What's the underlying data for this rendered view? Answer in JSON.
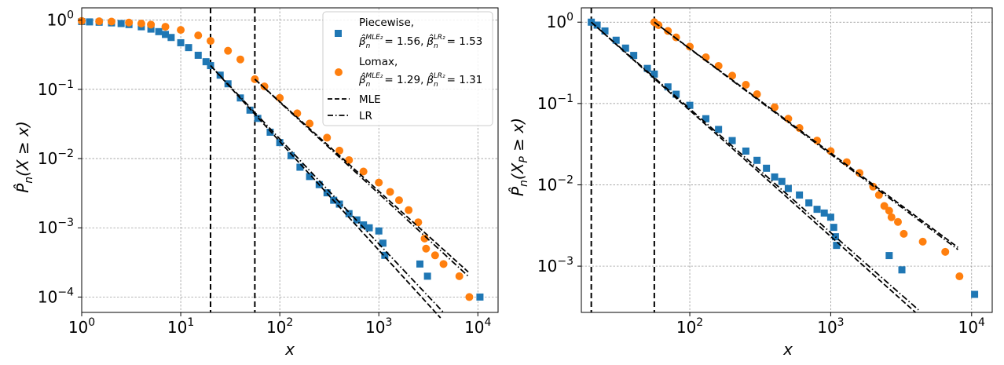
{
  "chart_data": [
    {
      "type": "scatter",
      "xscale": "log",
      "yscale": "log",
      "xlabel": "x",
      "ylabel": "P̂n(X ≥ x)",
      "xlim": [
        1,
        16000
      ],
      "ylim": [
        6e-05,
        1.5
      ],
      "x_ticks": [
        {
          "value": 1,
          "base": "10",
          "exp": "0"
        },
        {
          "value": 10,
          "base": "10",
          "exp": "1"
        },
        {
          "value": 100,
          "base": "10",
          "exp": "2"
        },
        {
          "value": 1000,
          "base": "10",
          "exp": "3"
        },
        {
          "value": 10000,
          "base": "10",
          "exp": "4"
        }
      ],
      "y_ticks": [
        {
          "value": 1,
          "base": "10",
          "exp": "0"
        },
        {
          "value": 0.1,
          "base": "10",
          "exp": "−1"
        },
        {
          "value": 0.01,
          "base": "10",
          "exp": "−2"
        },
        {
          "value": 0.001,
          "base": "10",
          "exp": "−3"
        },
        {
          "value": 0.0001,
          "base": "10",
          "exp": "−4"
        }
      ],
      "grid": true,
      "vlines": [
        20,
        56
      ],
      "series": [
        {
          "name": "Piecewise",
          "marker": "square",
          "color": "#1f77b4",
          "beta_mle": "1.56",
          "beta_lr": "1.53",
          "points": [
            [
              1,
              0.95
            ],
            [
              1.2,
              0.94
            ],
            [
              1.5,
              0.93
            ],
            [
              2,
              0.91
            ],
            [
              2.5,
              0.89
            ],
            [
              3,
              0.86
            ],
            [
              4,
              0.8
            ],
            [
              5,
              0.74
            ],
            [
              6,
              0.68
            ],
            [
              7,
              0.62
            ],
            [
              8,
              0.56
            ],
            [
              10,
              0.47
            ],
            [
              12,
              0.4
            ],
            [
              15,
              0.31
            ],
            [
              18,
              0.25
            ],
            [
              20,
              0.22
            ],
            [
              25,
              0.16
            ],
            [
              30,
              0.12
            ],
            [
              40,
              0.075
            ],
            [
              50,
              0.05
            ],
            [
              60,
              0.038
            ],
            [
              80,
              0.024
            ],
            [
              100,
              0.017
            ],
            [
              130,
              0.011
            ],
            [
              160,
              0.0075
            ],
            [
              200,
              0.0055
            ],
            [
              250,
              0.0042
            ],
            [
              300,
              0.0032
            ],
            [
              350,
              0.0025
            ],
            [
              400,
              0.0022
            ],
            [
              500,
              0.0016
            ],
            [
              600,
              0.0013
            ],
            [
              700,
              0.0011
            ],
            [
              800,
              0.001
            ],
            [
              1000,
              0.0009
            ],
            [
              1100,
              0.0006
            ],
            [
              1150,
              0.0004
            ],
            [
              2600,
              0.0003
            ],
            [
              3100,
              0.0002
            ],
            [
              10500,
              0.0001
            ]
          ],
          "fit_mle": {
            "x": [
              20,
              4200
            ],
            "y": [
              0.22,
              5e-05
            ]
          },
          "fit_lr": {
            "x": [
              20,
              4500
            ],
            "y": [
              0.22,
              6e-05
            ]
          }
        },
        {
          "name": "Lomax",
          "marker": "circle",
          "color": "#ff7f0e",
          "beta_mle": "1.29",
          "beta_lr": "1.31",
          "points": [
            [
              1,
              0.97
            ],
            [
              1.5,
              0.96
            ],
            [
              2,
              0.95
            ],
            [
              3,
              0.92
            ],
            [
              4,
              0.89
            ],
            [
              5,
              0.86
            ],
            [
              7,
              0.8
            ],
            [
              10,
              0.72
            ],
            [
              15,
              0.6
            ],
            [
              20,
              0.5
            ],
            [
              30,
              0.36
            ],
            [
              40,
              0.27
            ],
            [
              56,
              0.14
            ],
            [
              70,
              0.11
            ],
            [
              100,
              0.075
            ],
            [
              150,
              0.045
            ],
            [
              200,
              0.032
            ],
            [
              300,
              0.02
            ],
            [
              400,
              0.013
            ],
            [
              500,
              0.0095
            ],
            [
              700,
              0.0065
            ],
            [
              1000,
              0.0045
            ],
            [
              1300,
              0.0033
            ],
            [
              1600,
              0.0025
            ],
            [
              2000,
              0.0018
            ],
            [
              2500,
              0.0012
            ],
            [
              2900,
              0.0007
            ],
            [
              3000,
              0.0005
            ],
            [
              3700,
              0.0004
            ],
            [
              4500,
              0.0003
            ],
            [
              6500,
              0.0002
            ],
            [
              8200,
              0.0001
            ]
          ],
          "fit_mle": {
            "x": [
              56,
              8000
            ],
            "y": [
              0.14,
              0.00023
            ]
          },
          "fit_lr": {
            "x": [
              56,
              8000
            ],
            "y": [
              0.14,
              0.0002
            ]
          }
        }
      ],
      "legend": {
        "placement": "top-right",
        "entries": [
          {
            "key": "piecewise",
            "title": "Piecewise,",
            "mle_label": "β̂",
            "mle_sub": "n",
            "mle_sup": "MLE₂",
            "value_mle": "= 1.56,",
            "lr_label": "β̂",
            "lr_sub": "n",
            "lr_sup": "LR₂",
            "value_lr": "= 1.53"
          },
          {
            "key": "lomax",
            "title": "Lomax,",
            "mle_label": "β̂",
            "mle_sub": "n",
            "mle_sup": "MLE₂",
            "value_mle": "= 1.29,",
            "lr_label": "β̂",
            "lr_sub": "n",
            "lr_sup": "LR₂",
            "value_lr": "= 1.31"
          },
          {
            "key": "mle",
            "label": "MLE"
          },
          {
            "key": "lr",
            "label": "LR"
          }
        ]
      }
    },
    {
      "type": "scatter",
      "xscale": "log",
      "yscale": "log",
      "xlabel": "x",
      "ylabel": "P̂n(XP ≥ x)",
      "xlim": [
        17,
        14000
      ],
      "ylim": [
        0.00027,
        1.5
      ],
      "x_ticks": [
        {
          "value": 100,
          "base": "10",
          "exp": "2"
        },
        {
          "value": 1000,
          "base": "10",
          "exp": "3"
        },
        {
          "value": 10000,
          "base": "10",
          "exp": "4"
        }
      ],
      "y_ticks": [
        {
          "value": 1,
          "base": "10",
          "exp": "0"
        },
        {
          "value": 0.1,
          "base": "10",
          "exp": "−1"
        },
        {
          "value": 0.01,
          "base": "10",
          "exp": "−2"
        },
        {
          "value": 0.001,
          "base": "10",
          "exp": "−3"
        }
      ],
      "grid": true,
      "vlines": [
        20,
        56
      ],
      "series": [
        {
          "name": "Piecewise",
          "marker": "square",
          "color": "#1f77b4",
          "points": [
            [
              20,
              1.0
            ],
            [
              22,
              0.92
            ],
            [
              25,
              0.78
            ],
            [
              30,
              0.6
            ],
            [
              35,
              0.48
            ],
            [
              40,
              0.39
            ],
            [
              50,
              0.27
            ],
            [
              56,
              0.23
            ],
            [
              70,
              0.16
            ],
            [
              80,
              0.13
            ],
            [
              100,
              0.095
            ],
            [
              130,
              0.065
            ],
            [
              160,
              0.048
            ],
            [
              200,
              0.035
            ],
            [
              250,
              0.026
            ],
            [
              300,
              0.02
            ],
            [
              350,
              0.016
            ],
            [
              400,
              0.0125
            ],
            [
              450,
              0.011
            ],
            [
              500,
              0.009
            ],
            [
              600,
              0.0075
            ],
            [
              700,
              0.006
            ],
            [
              800,
              0.005
            ],
            [
              900,
              0.0045
            ],
            [
              1000,
              0.004
            ],
            [
              1050,
              0.003
            ],
            [
              1080,
              0.0023
            ],
            [
              1100,
              0.0018
            ],
            [
              2600,
              0.00135
            ],
            [
              3200,
              0.0009
            ],
            [
              10500,
              0.00045
            ]
          ],
          "fit_mle": {
            "x": [
              20,
              4000
            ],
            "y": [
              1.0,
              0.00027
            ]
          },
          "fit_lr": {
            "x": [
              20,
              4200
            ],
            "y": [
              1.0,
              0.00029
            ]
          }
        },
        {
          "name": "Lomax",
          "marker": "circle",
          "color": "#ff7f0e",
          "points": [
            [
              56,
              1.0
            ],
            [
              60,
              0.92
            ],
            [
              70,
              0.78
            ],
            [
              80,
              0.65
            ],
            [
              100,
              0.5
            ],
            [
              130,
              0.37
            ],
            [
              160,
              0.29
            ],
            [
              200,
              0.22
            ],
            [
              250,
              0.17
            ],
            [
              300,
              0.13
            ],
            [
              400,
              0.09
            ],
            [
              500,
              0.065
            ],
            [
              600,
              0.05
            ],
            [
              800,
              0.035
            ],
            [
              1000,
              0.026
            ],
            [
              1300,
              0.019
            ],
            [
              1600,
              0.014
            ],
            [
              2000,
              0.0095
            ],
            [
              2200,
              0.0075
            ],
            [
              2400,
              0.0055
            ],
            [
              2600,
              0.0048
            ],
            [
              2700,
              0.004
            ],
            [
              3000,
              0.0035
            ],
            [
              3300,
              0.0025
            ],
            [
              4500,
              0.002
            ],
            [
              6500,
              0.0015
            ],
            [
              8200,
              0.00075
            ]
          ],
          "fit_mle": {
            "x": [
              56,
              8000
            ],
            "y": [
              1.0,
              0.0017
            ]
          },
          "fit_lr": {
            "x": [
              56,
              8000
            ],
            "y": [
              1.0,
              0.0016
            ]
          }
        }
      ]
    }
  ]
}
